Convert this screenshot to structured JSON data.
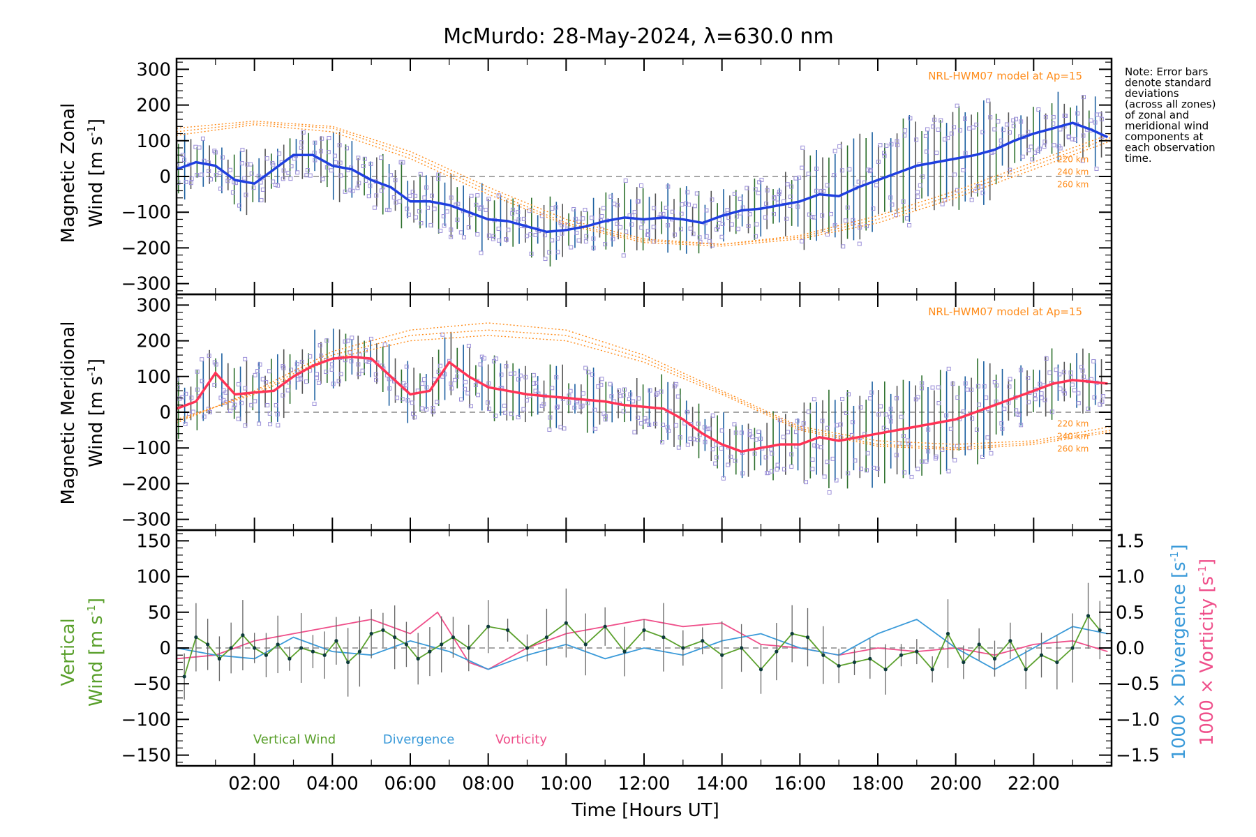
{
  "title": "McMurdo: 28-May-2024, λ=630.0 nm",
  "note": [
    "Note: Error bars",
    "denote standard",
    "deviations",
    "(across all zones)",
    "of zonal and",
    "meridional wind",
    "components at",
    "each observation",
    "time."
  ],
  "colors": {
    "zonal": "#1f3fe0",
    "meridional": "#ff3355",
    "model": "#ff8c1a",
    "scatter": "#9b8fd8",
    "vertical": "#5aa02c",
    "divergence": "#3a9ad9",
    "vorticity": "#ef4f8a",
    "errorbar": "#666666"
  },
  "chart_data": [
    {
      "type": "line",
      "panel": "zonal",
      "ylabel_line1": "Magnetic Zonal",
      "ylabel_line2": "Wind [m s",
      "ylabel_sup": "-1",
      "ylabel_end": "]",
      "ylim": [
        -330,
        330
      ],
      "yticks": [
        "300",
        "200",
        "100",
        "0",
        "−100",
        "−200",
        "−300"
      ],
      "yticks_values": [
        300,
        200,
        100,
        0,
        -100,
        -200,
        -300
      ],
      "model_label": "NRL-HWM07 model at Ap=15",
      "altitude_labels": [
        "220 km",
        "240 km",
        "260 km"
      ],
      "series": [
        {
          "x": [
            0.0,
            0.5,
            1.0,
            1.5,
            2.0,
            2.5,
            3.0,
            3.5,
            4.0,
            4.5,
            5.0,
            5.5,
            6.0,
            6.5,
            7.0,
            7.5,
            8.0,
            8.5,
            9.0,
            9.5,
            10.0,
            10.5,
            11.0,
            11.5,
            12.0,
            12.5,
            13.0,
            13.5,
            14.0,
            14.5,
            15.0,
            15.5,
            16.0,
            16.5,
            17.0,
            17.5,
            18.0,
            18.5,
            19.0,
            19.5,
            20.0,
            20.5,
            21.0,
            21.5,
            22.0,
            22.5,
            23.0,
            23.5,
            23.9
          ],
          "y": [
            20,
            40,
            30,
            -10,
            -20,
            20,
            60,
            60,
            30,
            20,
            -10,
            -30,
            -70,
            -70,
            -80,
            -100,
            -120,
            -125,
            -140,
            -155,
            -150,
            -140,
            -125,
            -115,
            -120,
            -115,
            -120,
            -130,
            -110,
            -95,
            -90,
            -80,
            -70,
            -50,
            -55,
            -30,
            -10,
            10,
            30,
            40,
            50,
            60,
            75,
            100,
            120,
            135,
            150,
            130,
            110
          ]
        }
      ],
      "model": [
        {
          "x": [
            0,
            2,
            4,
            6,
            8,
            10,
            12,
            14,
            16,
            18,
            20,
            22,
            24
          ],
          "y": [
            125,
            150,
            135,
            60,
            -40,
            -130,
            -180,
            -190,
            -170,
            -120,
            -50,
            30,
            110
          ]
        },
        {
          "x": [
            0,
            2,
            4,
            6,
            8,
            10,
            12,
            14,
            16,
            18,
            20,
            22,
            24
          ],
          "y": [
            135,
            155,
            140,
            70,
            -30,
            -120,
            -175,
            -190,
            -165,
            -110,
            -40,
            40,
            120
          ]
        },
        {
          "x": [
            0,
            2,
            4,
            6,
            8,
            10,
            12,
            14,
            16,
            18,
            20,
            22,
            24
          ],
          "y": [
            115,
            145,
            125,
            50,
            -50,
            -135,
            -185,
            -195,
            -175,
            -130,
            -60,
            20,
            100
          ]
        }
      ]
    },
    {
      "type": "line",
      "panel": "meridional",
      "ylabel_line1": "Magnetic Meridional",
      "ylabel_line2": "Wind [m s",
      "ylabel_sup": "-1",
      "ylabel_end": "]",
      "ylim": [
        -330,
        330
      ],
      "yticks": [
        "300",
        "200",
        "100",
        "0",
        "−100",
        "−200",
        "−300"
      ],
      "yticks_values": [
        300,
        200,
        100,
        0,
        -100,
        -200,
        -300
      ],
      "model_label": "NRL-HWM07 model at Ap=15",
      "altitude_labels": [
        "220 km",
        "240 km",
        "260 km"
      ],
      "series": [
        {
          "x": [
            0.0,
            0.5,
            1.0,
            1.5,
            2.0,
            2.5,
            3.0,
            3.5,
            4.0,
            4.5,
            5.0,
            5.5,
            6.0,
            6.5,
            7.0,
            7.5,
            8.0,
            8.5,
            9.0,
            9.5,
            10.0,
            10.5,
            11.0,
            11.5,
            12.0,
            12.5,
            13.0,
            13.5,
            14.0,
            14.5,
            15.0,
            15.5,
            16.0,
            16.5,
            17.0,
            17.5,
            18.0,
            18.5,
            19.0,
            19.5,
            20.0,
            20.5,
            21.0,
            21.5,
            22.0,
            22.5,
            23.0,
            23.5,
            23.9
          ],
          "y": [
            10,
            30,
            110,
            50,
            55,
            60,
            100,
            130,
            150,
            155,
            150,
            100,
            50,
            60,
            140,
            100,
            70,
            60,
            50,
            45,
            40,
            35,
            30,
            20,
            15,
            10,
            -20,
            -60,
            -90,
            -110,
            -100,
            -90,
            -90,
            -70,
            -80,
            -70,
            -60,
            -50,
            -40,
            -30,
            -20,
            0,
            20,
            40,
            60,
            80,
            90,
            85,
            80
          ]
        }
      ],
      "model": [
        {
          "x": [
            0,
            2,
            4,
            6,
            8,
            10,
            12,
            14,
            16,
            18,
            20,
            22,
            24
          ],
          "y": [
            -30,
            60,
            170,
            230,
            250,
            230,
            160,
            60,
            -40,
            -80,
            -90,
            -80,
            -40
          ]
        },
        {
          "x": [
            0,
            2,
            4,
            6,
            8,
            10,
            12,
            14,
            16,
            18,
            20,
            22,
            24
          ],
          "y": [
            -25,
            55,
            160,
            215,
            230,
            215,
            150,
            55,
            -45,
            -90,
            -100,
            -85,
            -50
          ]
        },
        {
          "x": [
            0,
            2,
            4,
            6,
            8,
            10,
            12,
            14,
            16,
            18,
            20,
            22,
            24
          ],
          "y": [
            -20,
            50,
            150,
            200,
            215,
            200,
            140,
            50,
            -50,
            -95,
            -105,
            -90,
            -55
          ]
        }
      ]
    },
    {
      "type": "line",
      "panel": "vertical",
      "ylabel_line1": "Vertical",
      "ylabel_line2": "Wind [m s",
      "ylabel_sup": "-1",
      "ylabel_end": "]",
      "ylim": [
        -165,
        165
      ],
      "yticks": [
        "150",
        "100",
        "50",
        "0",
        "−50",
        "−100",
        "−150"
      ],
      "yticks_values": [
        150,
        100,
        50,
        0,
        -50,
        -100,
        -150
      ],
      "right_ylim": [
        -1.65,
        1.65
      ],
      "right_yticks": [
        "1.5",
        "1.0",
        "0.5",
        "0.0",
        "−0.5",
        "−1.0",
        "−1.5"
      ],
      "right_yticks_values": [
        1.5,
        1.0,
        0.5,
        0.0,
        -0.5,
        -1.0,
        -1.5
      ],
      "right_label_div": "1000 × Divergence [s",
      "right_label_vor": "1000 × Vorticity [s",
      "right_label_sup": "-1",
      "right_label_end": "]",
      "legend": [
        "Vertical Wind",
        "Divergence",
        "Vorticity"
      ],
      "xticks": [
        "02:00",
        "04:00",
        "06:00",
        "08:00",
        "10:00",
        "12:00",
        "14:00",
        "16:00",
        "18:00",
        "20:00",
        "22:00"
      ],
      "xticks_values": [
        2,
        4,
        6,
        8,
        10,
        12,
        14,
        16,
        18,
        20,
        22
      ],
      "xlabel": "Time [Hours UT]",
      "xlim": [
        0,
        24
      ],
      "series": [
        {
          "name": "Vertical Wind",
          "x": [
            0.2,
            0.5,
            0.8,
            1.1,
            1.4,
            1.7,
            2.0,
            2.3,
            2.6,
            2.9,
            3.2,
            3.5,
            3.8,
            4.1,
            4.4,
            4.7,
            5.0,
            5.3,
            5.6,
            5.9,
            6.2,
            6.5,
            6.8,
            7.1,
            7.5,
            8.0,
            8.5,
            9.0,
            9.5,
            10.0,
            10.5,
            11.0,
            11.5,
            12.0,
            12.5,
            13.0,
            13.5,
            14.0,
            14.5,
            15.0,
            15.4,
            15.8,
            16.2,
            16.6,
            17.0,
            17.4,
            17.8,
            18.2,
            18.6,
            19.0,
            19.4,
            19.8,
            20.2,
            20.6,
            21.0,
            21.4,
            21.8,
            22.2,
            22.6,
            23.0,
            23.4,
            23.7
          ],
          "y": [
            -40,
            15,
            5,
            -15,
            0,
            18,
            0,
            -10,
            5,
            -15,
            0,
            -5,
            -10,
            10,
            -20,
            -5,
            20,
            25,
            15,
            5,
            -15,
            -5,
            5,
            15,
            0,
            30,
            25,
            0,
            15,
            35,
            5,
            30,
            -5,
            25,
            15,
            0,
            10,
            -10,
            0,
            -30,
            -5,
            20,
            15,
            -10,
            -25,
            -20,
            -15,
            -30,
            -10,
            -5,
            -30,
            20,
            -20,
            5,
            -15,
            10,
            -30,
            -10,
            -20,
            0,
            45,
            25
          ]
        },
        {
          "name": "Divergence",
          "x": [
            0,
            1,
            2,
            3,
            4,
            5,
            6,
            7,
            8,
            9,
            10,
            11,
            12,
            13,
            14,
            15,
            16,
            17,
            18,
            19,
            20,
            21,
            22,
            23,
            23.9
          ],
          "y": [
            0.0,
            -0.1,
            -0.15,
            0.15,
            -0.05,
            -0.1,
            0.1,
            -0.05,
            -0.3,
            -0.1,
            0.05,
            -0.15,
            0.0,
            -0.1,
            0.1,
            0.2,
            0.0,
            -0.1,
            0.2,
            0.4,
            0.0,
            -0.3,
            0.0,
            0.3,
            0.2
          ]
        },
        {
          "name": "Vorticity",
          "x": [
            0,
            1,
            2,
            3,
            4,
            5,
            6,
            6.7,
            7.5,
            8,
            9,
            10,
            11,
            12,
            13,
            14,
            15,
            16,
            17,
            18,
            19,
            20,
            21,
            22,
            23,
            23.9
          ],
          "y": [
            -0.15,
            -0.1,
            0.1,
            0.2,
            0.3,
            0.4,
            0.2,
            0.5,
            -0.2,
            -0.3,
            0.0,
            0.2,
            0.3,
            0.4,
            0.3,
            0.35,
            0.05,
            0.0,
            -0.1,
            0.0,
            -0.05,
            0.0,
            -0.1,
            0.05,
            0.1,
            -0.05
          ]
        }
      ]
    }
  ]
}
